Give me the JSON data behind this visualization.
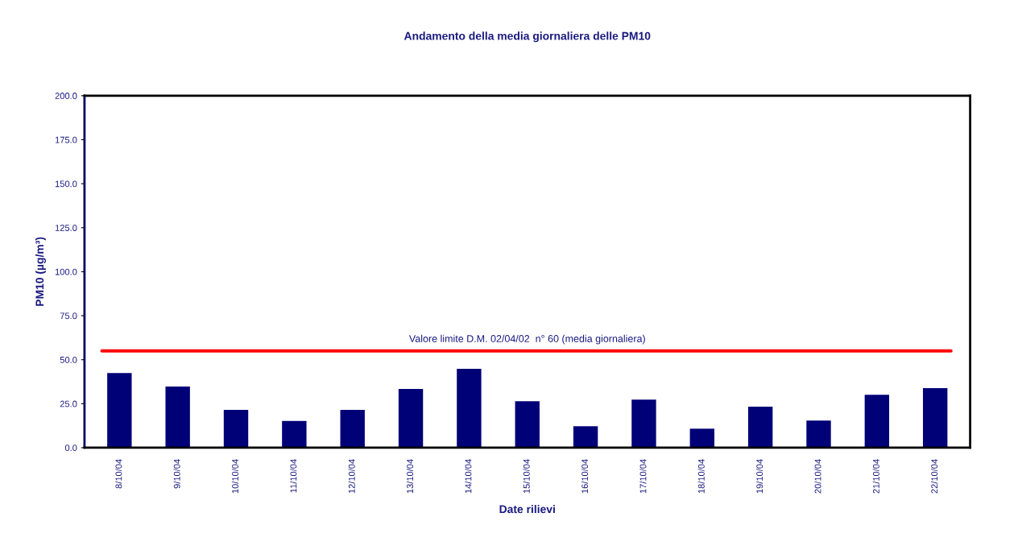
{
  "chart_data": {
    "type": "bar",
    "title": "Andamento della media giornaliera delle PM10",
    "xlabel": "Date rilievi",
    "ylabel": "PM10 (µg/m³)",
    "categories": [
      "8/10/04",
      "9/10/04",
      "10/10/04",
      "11/10/04",
      "12/10/04",
      "13/10/04",
      "14/10/04",
      "15/10/04",
      "16/10/04",
      "17/10/04",
      "18/10/04",
      "19/10/04",
      "20/10/04",
      "21/10/04",
      "22/10/04"
    ],
    "values": [
      42.4,
      34.7,
      21.5,
      15.2,
      21.5,
      33.4,
      44.8,
      26.4,
      12.2,
      27.3,
      10.8,
      23.3,
      15.4,
      30.1,
      33.8
    ],
    "color": "#000077",
    "ylim": [
      0,
      200
    ],
    "yticks": [
      {
        "value": 0,
        "label": "0.0"
      },
      {
        "value": 25,
        "label": "25.0"
      },
      {
        "value": 50,
        "label": "50.0"
      },
      {
        "value": 75,
        "label": "75.0"
      },
      {
        "value": 100,
        "label": "100.0"
      },
      {
        "value": 125,
        "label": "125.0"
      },
      {
        "value": 150,
        "label": "150.0"
      },
      {
        "value": 175,
        "label": "175.0"
      },
      {
        "value": 200,
        "label": "200.0"
      }
    ],
    "ref_lines": [
      {
        "axis": "y",
        "value": 55,
        "label": "Valore limite D.M. 02/04/02  n° 60 (media giornaliera)",
        "color": "#ff0000"
      }
    ],
    "grid": false,
    "legend": false
  }
}
